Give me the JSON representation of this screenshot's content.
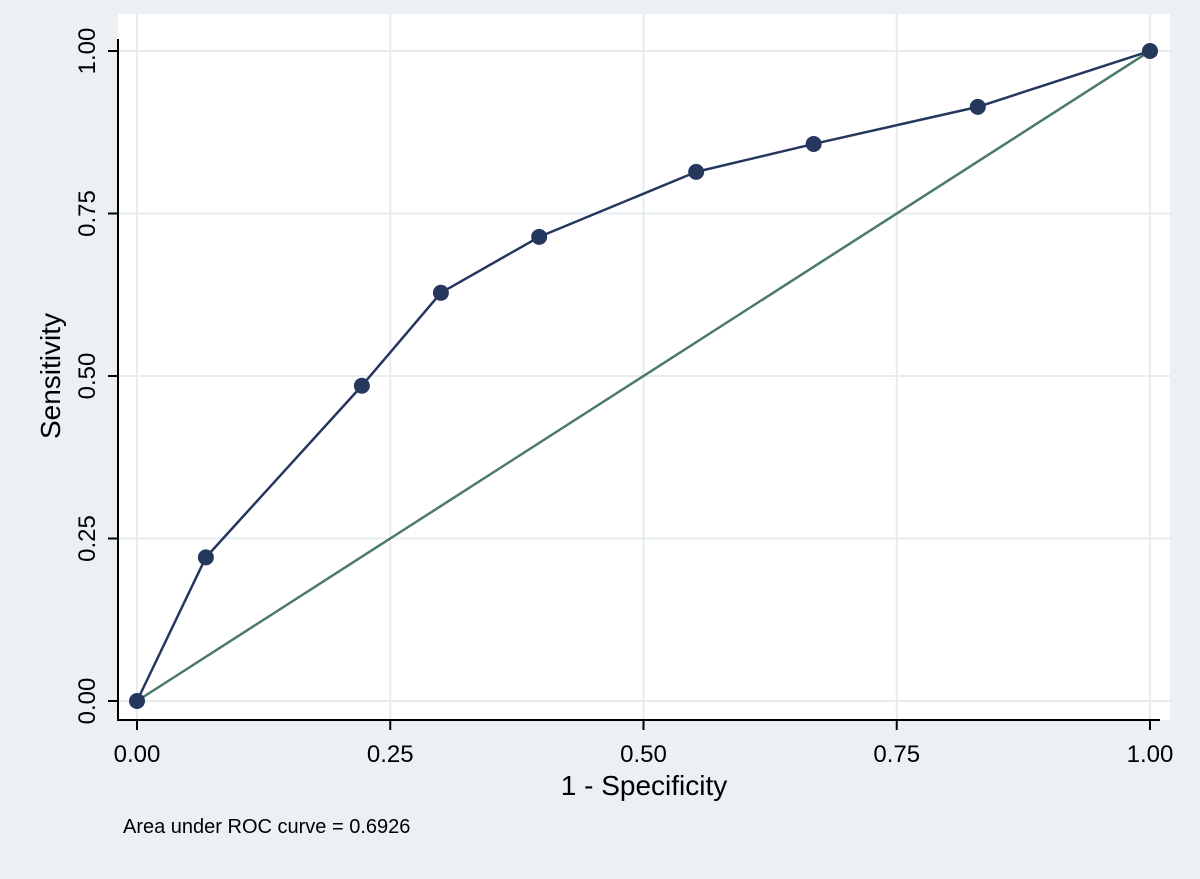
{
  "chart_data": {
    "type": "line",
    "xlabel": "1 - Specificity",
    "ylabel": "Sensitivity",
    "xlim": [
      0,
      1
    ],
    "ylim": [
      0,
      1
    ],
    "x_ticks": [
      0,
      0.25,
      0.5,
      0.75,
      1
    ],
    "y_ticks": [
      0,
      0.25,
      0.5,
      0.75,
      1
    ],
    "x_tick_labels": [
      "0.00",
      "0.25",
      "0.50",
      "0.75",
      "1.00"
    ],
    "y_tick_labels": [
      "0.00",
      "0.25",
      "0.50",
      "0.75",
      "1.00"
    ],
    "grid": true,
    "legend": "none",
    "series": [
      {
        "x": [
          0,
          0.068,
          0.222,
          0.3,
          0.397,
          0.552,
          0.668,
          0.83,
          1
        ],
        "y": [
          0,
          0.221,
          0.485,
          0.628,
          0.714,
          0.814,
          0.857,
          0.914,
          1
        ],
        "color": "#26375e",
        "markers": true
      },
      {
        "x": [
          0,
          1
        ],
        "y": [
          0,
          1
        ],
        "color": "#4b7a66",
        "markers": false
      }
    ],
    "annotation": "Area under ROC curve = 0.6926"
  },
  "colors": {
    "background": "#eaf0f3",
    "plot_background": "#ffffff",
    "grid": "#e6ecef",
    "roc_line": "#26375e",
    "reference_line": "#4b7a66"
  }
}
